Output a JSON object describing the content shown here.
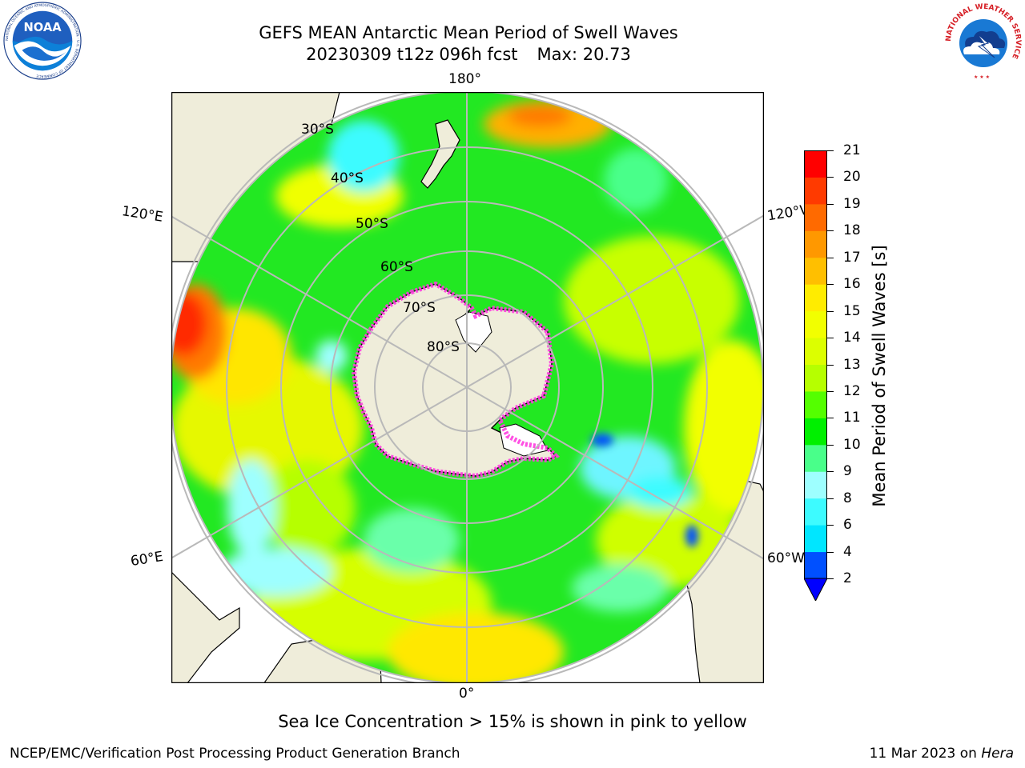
{
  "header": {
    "title_line1": "GEFS MEAN Antarctic Mean Period of Swell Waves",
    "title_date": "20230309 t12z 096h fcst",
    "title_max": "Max: 20.73"
  },
  "logos": {
    "left": "NOAA",
    "left_ring_text": "NATIONAL OCEANIC AND ATMOSPHERIC ADMINISTRATION · U.S. DEPARTMENT OF COMMERCE",
    "right_ring_text": "NATIONAL WEATHER SERVICE"
  },
  "map": {
    "projection": "south-polar-stereographic",
    "longitude_labels": {
      "top": "180°",
      "bottom": "0°",
      "upper_left": "120°E",
      "lower_left": "60°E",
      "upper_right": "120°W",
      "lower_right": "60°W"
    },
    "latitude_labels": [
      "30°S",
      "40°S",
      "50°S",
      "60°S",
      "70°S",
      "80°S"
    ],
    "colors": {
      "land": "#efedda",
      "ice_edge": "#ff3de0",
      "grid": "#b9b9b9",
      "dominant_field": "#22e822"
    }
  },
  "colorbar": {
    "label": "Mean Period of Swell Waves [s]",
    "ticks": [
      "2",
      "4",
      "6",
      "8",
      "9",
      "10",
      "11",
      "12",
      "13",
      "14",
      "15",
      "16",
      "17",
      "18",
      "19",
      "20",
      "21"
    ],
    "colors": [
      "#0050ff",
      "#00e6ff",
      "#3dfbff",
      "#9effff",
      "#49ff8a",
      "#00f000",
      "#54ff00",
      "#b6ff00",
      "#dcff00",
      "#f2ff00",
      "#ffec00",
      "#ffbf00",
      "#ff9800",
      "#ff6a00",
      "#ff3a00",
      "#ff0000"
    ],
    "extend_color": "#0000ff"
  },
  "notes": {
    "sea_ice": "Sea Ice Concentration > 15% is shown in pink to yellow"
  },
  "footer": {
    "left": "NCEP/EMC/Verification Post Processing Product Generation Branch",
    "date": "11 Mar 2023 on",
    "machine": "Hera"
  }
}
